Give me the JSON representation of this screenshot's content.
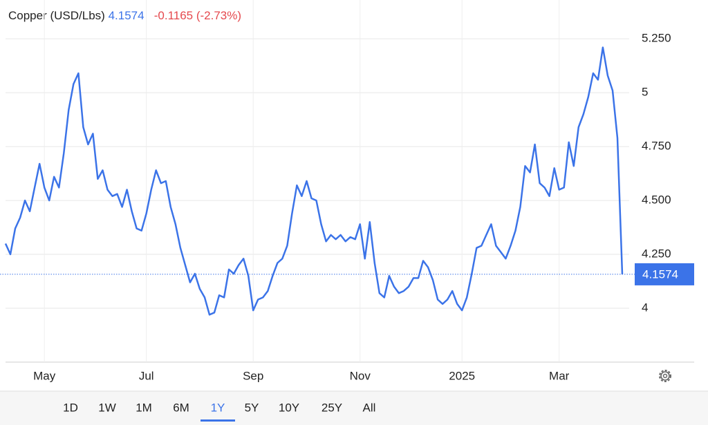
{
  "header": {
    "title": "Copper (USD/Lbs)",
    "change": "-0.1165 (-2.73%)",
    "change_color": "#e5484d"
  },
  "chart_data": {
    "type": "line",
    "color": "#3b73e8",
    "grid": true,
    "categories": [
      null,
      null,
      null,
      null,
      null,
      null,
      null,
      null,
      "May",
      null,
      null,
      null,
      null,
      null,
      null,
      null,
      null,
      null,
      null,
      null,
      null,
      null,
      null,
      null,
      null,
      null,
      null,
      null,
      null,
      "Jul",
      null,
      null,
      null,
      null,
      null,
      null,
      null,
      null,
      null,
      null,
      null,
      null,
      null,
      null,
      null,
      null,
      null,
      null,
      null,
      null,
      null,
      "Sep",
      null,
      null,
      null,
      null,
      null,
      null,
      null,
      null,
      null,
      null,
      null,
      null,
      null,
      null,
      null,
      null,
      null,
      null,
      null,
      null,
      null,
      "Nov",
      null,
      null,
      null,
      null,
      null,
      null,
      null,
      null,
      null,
      null,
      null,
      null,
      null,
      null,
      null,
      null,
      null,
      null,
      null,
      null,
      "2025",
      null,
      null,
      null,
      null,
      null,
      null,
      null,
      null,
      null,
      null,
      null,
      null,
      null,
      null,
      null,
      null,
      null,
      null,
      null,
      "Mar",
      null,
      null,
      null,
      null,
      null,
      null,
      null,
      null,
      null,
      null,
      null,
      null,
      null
    ],
    "values": [
      4.3,
      4.25,
      4.37,
      4.42,
      4.5,
      4.45,
      4.56,
      4.67,
      4.56,
      4.5,
      4.61,
      4.56,
      4.72,
      4.92,
      5.04,
      5.09,
      4.84,
      4.76,
      4.81,
      4.6,
      4.64,
      4.55,
      4.52,
      4.53,
      4.47,
      4.55,
      4.45,
      4.37,
      4.36,
      4.44,
      4.55,
      4.64,
      4.58,
      4.59,
      4.47,
      4.39,
      4.28,
      4.2,
      4.12,
      4.16,
      4.09,
      4.05,
      3.97,
      3.98,
      4.06,
      4.05,
      4.18,
      4.16,
      4.2,
      4.23,
      4.15,
      3.99,
      4.04,
      4.05,
      4.08,
      4.15,
      4.21,
      4.23,
      4.29,
      4.44,
      4.57,
      4.52,
      4.59,
      4.51,
      4.5,
      4.39,
      4.31,
      4.34,
      4.32,
      4.34,
      4.31,
      4.33,
      4.32,
      4.39,
      4.23,
      4.4,
      4.21,
      4.07,
      4.05,
      4.15,
      4.1,
      4.07,
      4.08,
      4.1,
      4.14,
      4.14,
      4.22,
      4.19,
      4.13,
      4.04,
      4.02,
      4.04,
      4.08,
      4.02,
      3.99,
      4.05,
      4.16,
      4.28,
      4.29,
      4.34,
      4.39,
      4.29,
      4.26,
      4.23,
      4.29,
      4.36,
      4.47,
      4.66,
      4.63,
      4.76,
      4.58,
      4.56,
      4.52,
      4.65,
      4.55,
      4.56,
      4.77,
      4.66,
      4.84,
      4.9,
      4.98,
      5.09,
      5.06,
      5.21,
      5.08,
      5.01,
      4.79,
      4.1574
    ],
    "ylim": [
      3.75,
      5.43
    ],
    "yticks": [
      4,
      {
        "value": 4.25,
        "label": "4.250"
      },
      {
        "value": 4.5,
        "label": "4.500"
      },
      {
        "value": 4.75,
        "label": "4.750"
      },
      5,
      {
        "value": 5.25,
        "label": "5.250"
      }
    ]
  },
  "range_buttons": [
    "1D",
    "1W",
    "1M",
    "6M",
    "1Y",
    "5Y",
    "10Y",
    "25Y",
    "All"
  ],
  "active_range": "1Y"
}
